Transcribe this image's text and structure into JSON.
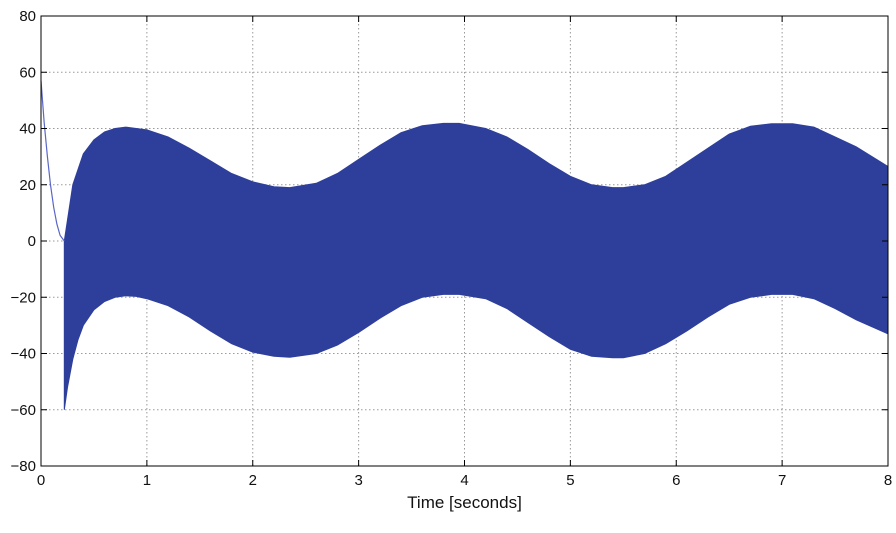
{
  "chart_data": {
    "type": "line",
    "title": "",
    "xlabel": "Time [seconds]",
    "ylabel": "",
    "xlim": [
      0,
      8
    ],
    "ylim": [
      -80,
      80
    ],
    "xticks": [
      0,
      1,
      2,
      3,
      4,
      5,
      6,
      7,
      8
    ],
    "yticks": [
      -80,
      -60,
      -40,
      -20,
      0,
      20,
      40,
      60,
      80
    ],
    "xtick_labels": [
      "0",
      "1",
      "2",
      "3",
      "4",
      "5",
      "6",
      "7",
      "8"
    ],
    "ytick_labels": [
      "−80",
      "−60",
      "−40",
      "−20",
      "0",
      "20",
      "40",
      "60",
      "80"
    ],
    "grid": true,
    "grid_style": "dotted",
    "series": [
      {
        "color": "#2e3f9b",
        "initial_transient": {
          "x": [
            0,
            0.03,
            0.06,
            0.09,
            0.12,
            0.15,
            0.18,
            0.22
          ],
          "y": [
            57,
            42,
            30,
            20,
            12,
            6,
            2,
            0
          ]
        },
        "envelope_upper": {
          "x": [
            0.22,
            0.3,
            0.4,
            0.5,
            0.6,
            0.7,
            0.8,
            1.0,
            1.2,
            1.4,
            1.6,
            1.8,
            2.0,
            2.2,
            2.35,
            2.6,
            2.8,
            3.0,
            3.2,
            3.4,
            3.6,
            3.8,
            3.95,
            4.2,
            4.4,
            4.6,
            4.8,
            5.0,
            5.2,
            5.4,
            5.5,
            5.7,
            5.9,
            6.1,
            6.3,
            6.5,
            6.7,
            6.9,
            7.1,
            7.3,
            7.5,
            7.7,
            8.0
          ],
          "y": [
            0,
            20,
            31,
            36,
            38.8,
            40,
            40.5,
            39.5,
            37,
            33,
            28.5,
            24,
            21,
            19.3,
            19,
            20.5,
            24,
            29,
            34,
            38.5,
            41,
            41.8,
            41.8,
            40,
            37,
            32.5,
            27.5,
            23,
            20,
            19,
            19,
            20,
            23,
            28,
            33,
            38,
            40.8,
            41.7,
            41.7,
            40.5,
            37,
            33.5,
            26.5
          ]
        },
        "envelope_lower": {
          "x": [
            0.22,
            0.25,
            0.3,
            0.35,
            0.4,
            0.5,
            0.6,
            0.7,
            0.8,
            0.9,
            1.0,
            1.2,
            1.4,
            1.6,
            1.8,
            2.0,
            2.2,
            2.35,
            2.6,
            2.8,
            3.0,
            3.2,
            3.4,
            3.6,
            3.8,
            3.95,
            4.2,
            4.4,
            4.6,
            4.8,
            5.0,
            5.2,
            5.4,
            5.5,
            5.7,
            5.9,
            6.1,
            6.3,
            6.5,
            6.7,
            6.9,
            7.1,
            7.3,
            7.5,
            7.7,
            8.0
          ],
          "y": [
            -60,
            -52,
            -42,
            -35,
            -30,
            -24.5,
            -21.5,
            -20,
            -19.5,
            -19.7,
            -20.5,
            -23,
            -27,
            -32,
            -36.5,
            -39.5,
            -41,
            -41.3,
            -40,
            -37,
            -32.5,
            -27.5,
            -23,
            -20,
            -19,
            -19,
            -20.5,
            -24,
            -29,
            -34,
            -38.5,
            -41,
            -41.5,
            -41.5,
            -40,
            -36.5,
            -32,
            -27,
            -22.5,
            -20,
            -19,
            -19,
            -20.5,
            -24,
            -28,
            -33
          ]
        }
      }
    ]
  }
}
